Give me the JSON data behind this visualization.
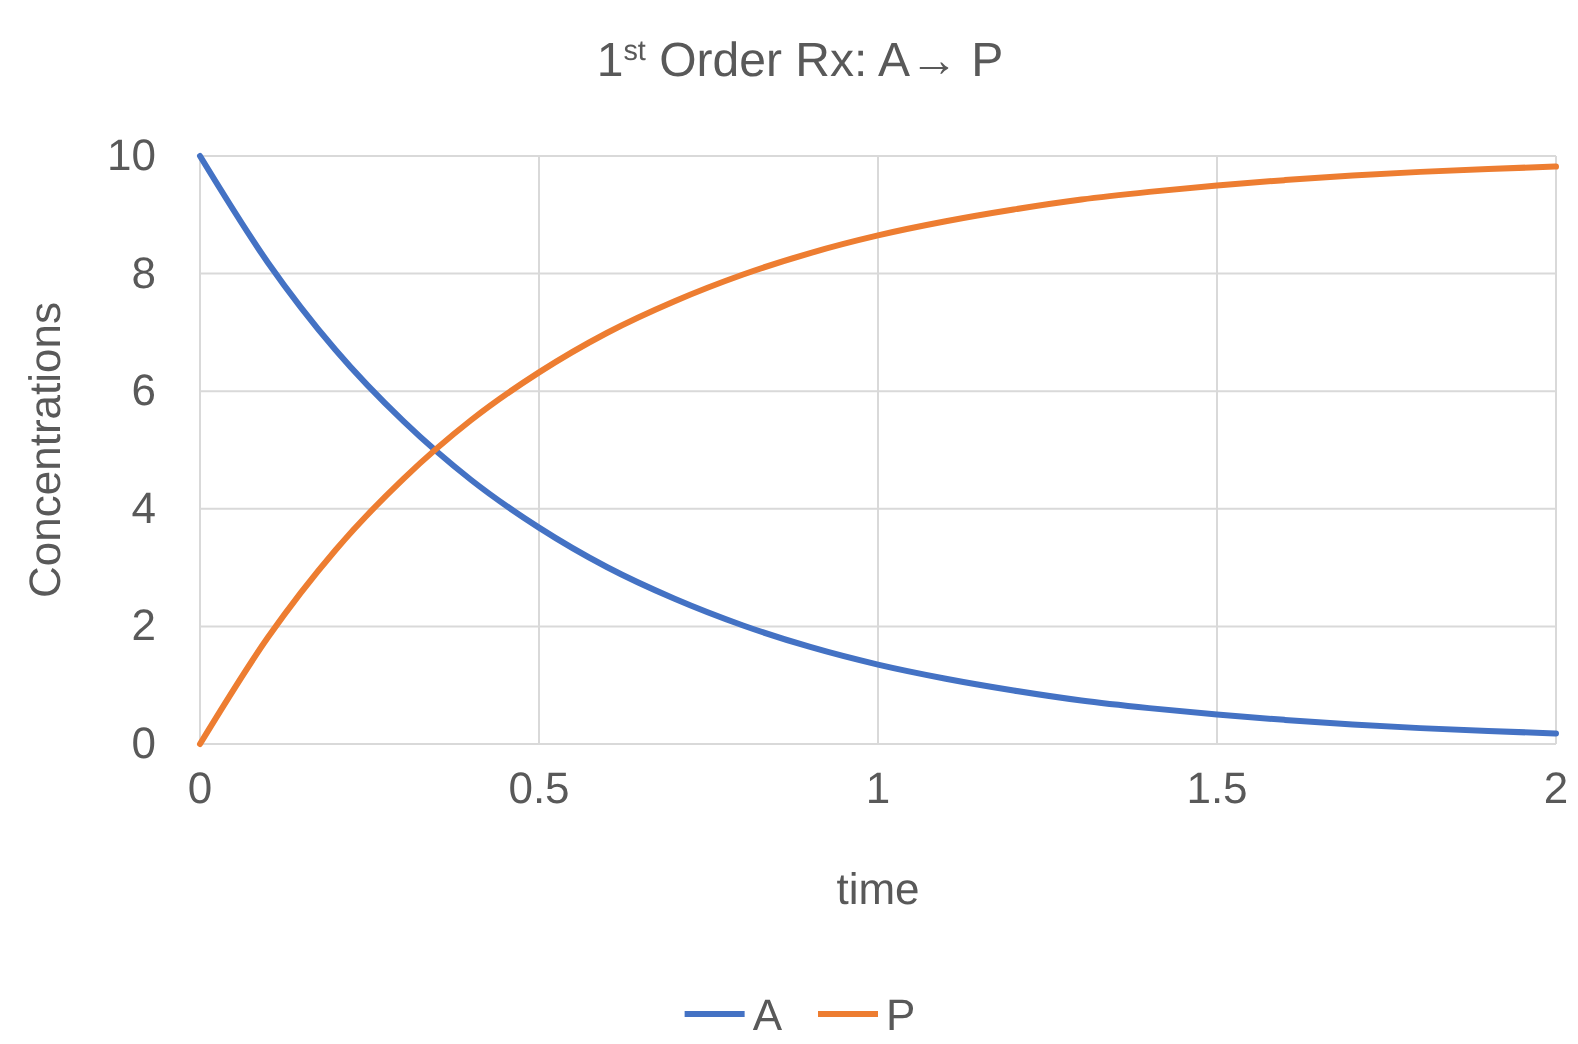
{
  "chart_data": {
    "type": "line",
    "title": "1$^{st}$ Order Rx: A→ P",
    "xlabel": "time",
    "ylabel": "Concentrations",
    "x": [
      0,
      0.1,
      0.2,
      0.3,
      0.4,
      0.5,
      0.6,
      0.7,
      0.8,
      0.9,
      1,
      1.1,
      1.2,
      1.3,
      1.4,
      1.5,
      1.6,
      1.7,
      1.8,
      1.9,
      2
    ],
    "series": [
      {
        "name": "A",
        "color": "#4472c4",
        "values": [
          10,
          8.19,
          6.7,
          5.49,
          4.49,
          3.68,
          3.01,
          2.47,
          2.02,
          1.65,
          1.35,
          1.11,
          0.91,
          0.74,
          0.61,
          0.5,
          0.41,
          0.33,
          0.27,
          0.22,
          0.18
        ]
      },
      {
        "name": "P",
        "color": "#ed7d31",
        "values": [
          0,
          1.81,
          3.3,
          4.51,
          5.51,
          6.32,
          6.99,
          7.53,
          7.98,
          8.35,
          8.65,
          8.89,
          9.09,
          9.26,
          9.39,
          9.5,
          9.59,
          9.67,
          9.73,
          9.78,
          9.82
        ]
      }
    ],
    "xlim": [
      0,
      2
    ],
    "xticks": [
      0,
      0.5,
      1,
      1.5,
      2
    ],
    "ylim": [
      0,
      10
    ],
    "yticks": [
      0,
      2,
      4,
      6,
      8,
      10
    ],
    "grid": true,
    "legend": "bottom"
  }
}
